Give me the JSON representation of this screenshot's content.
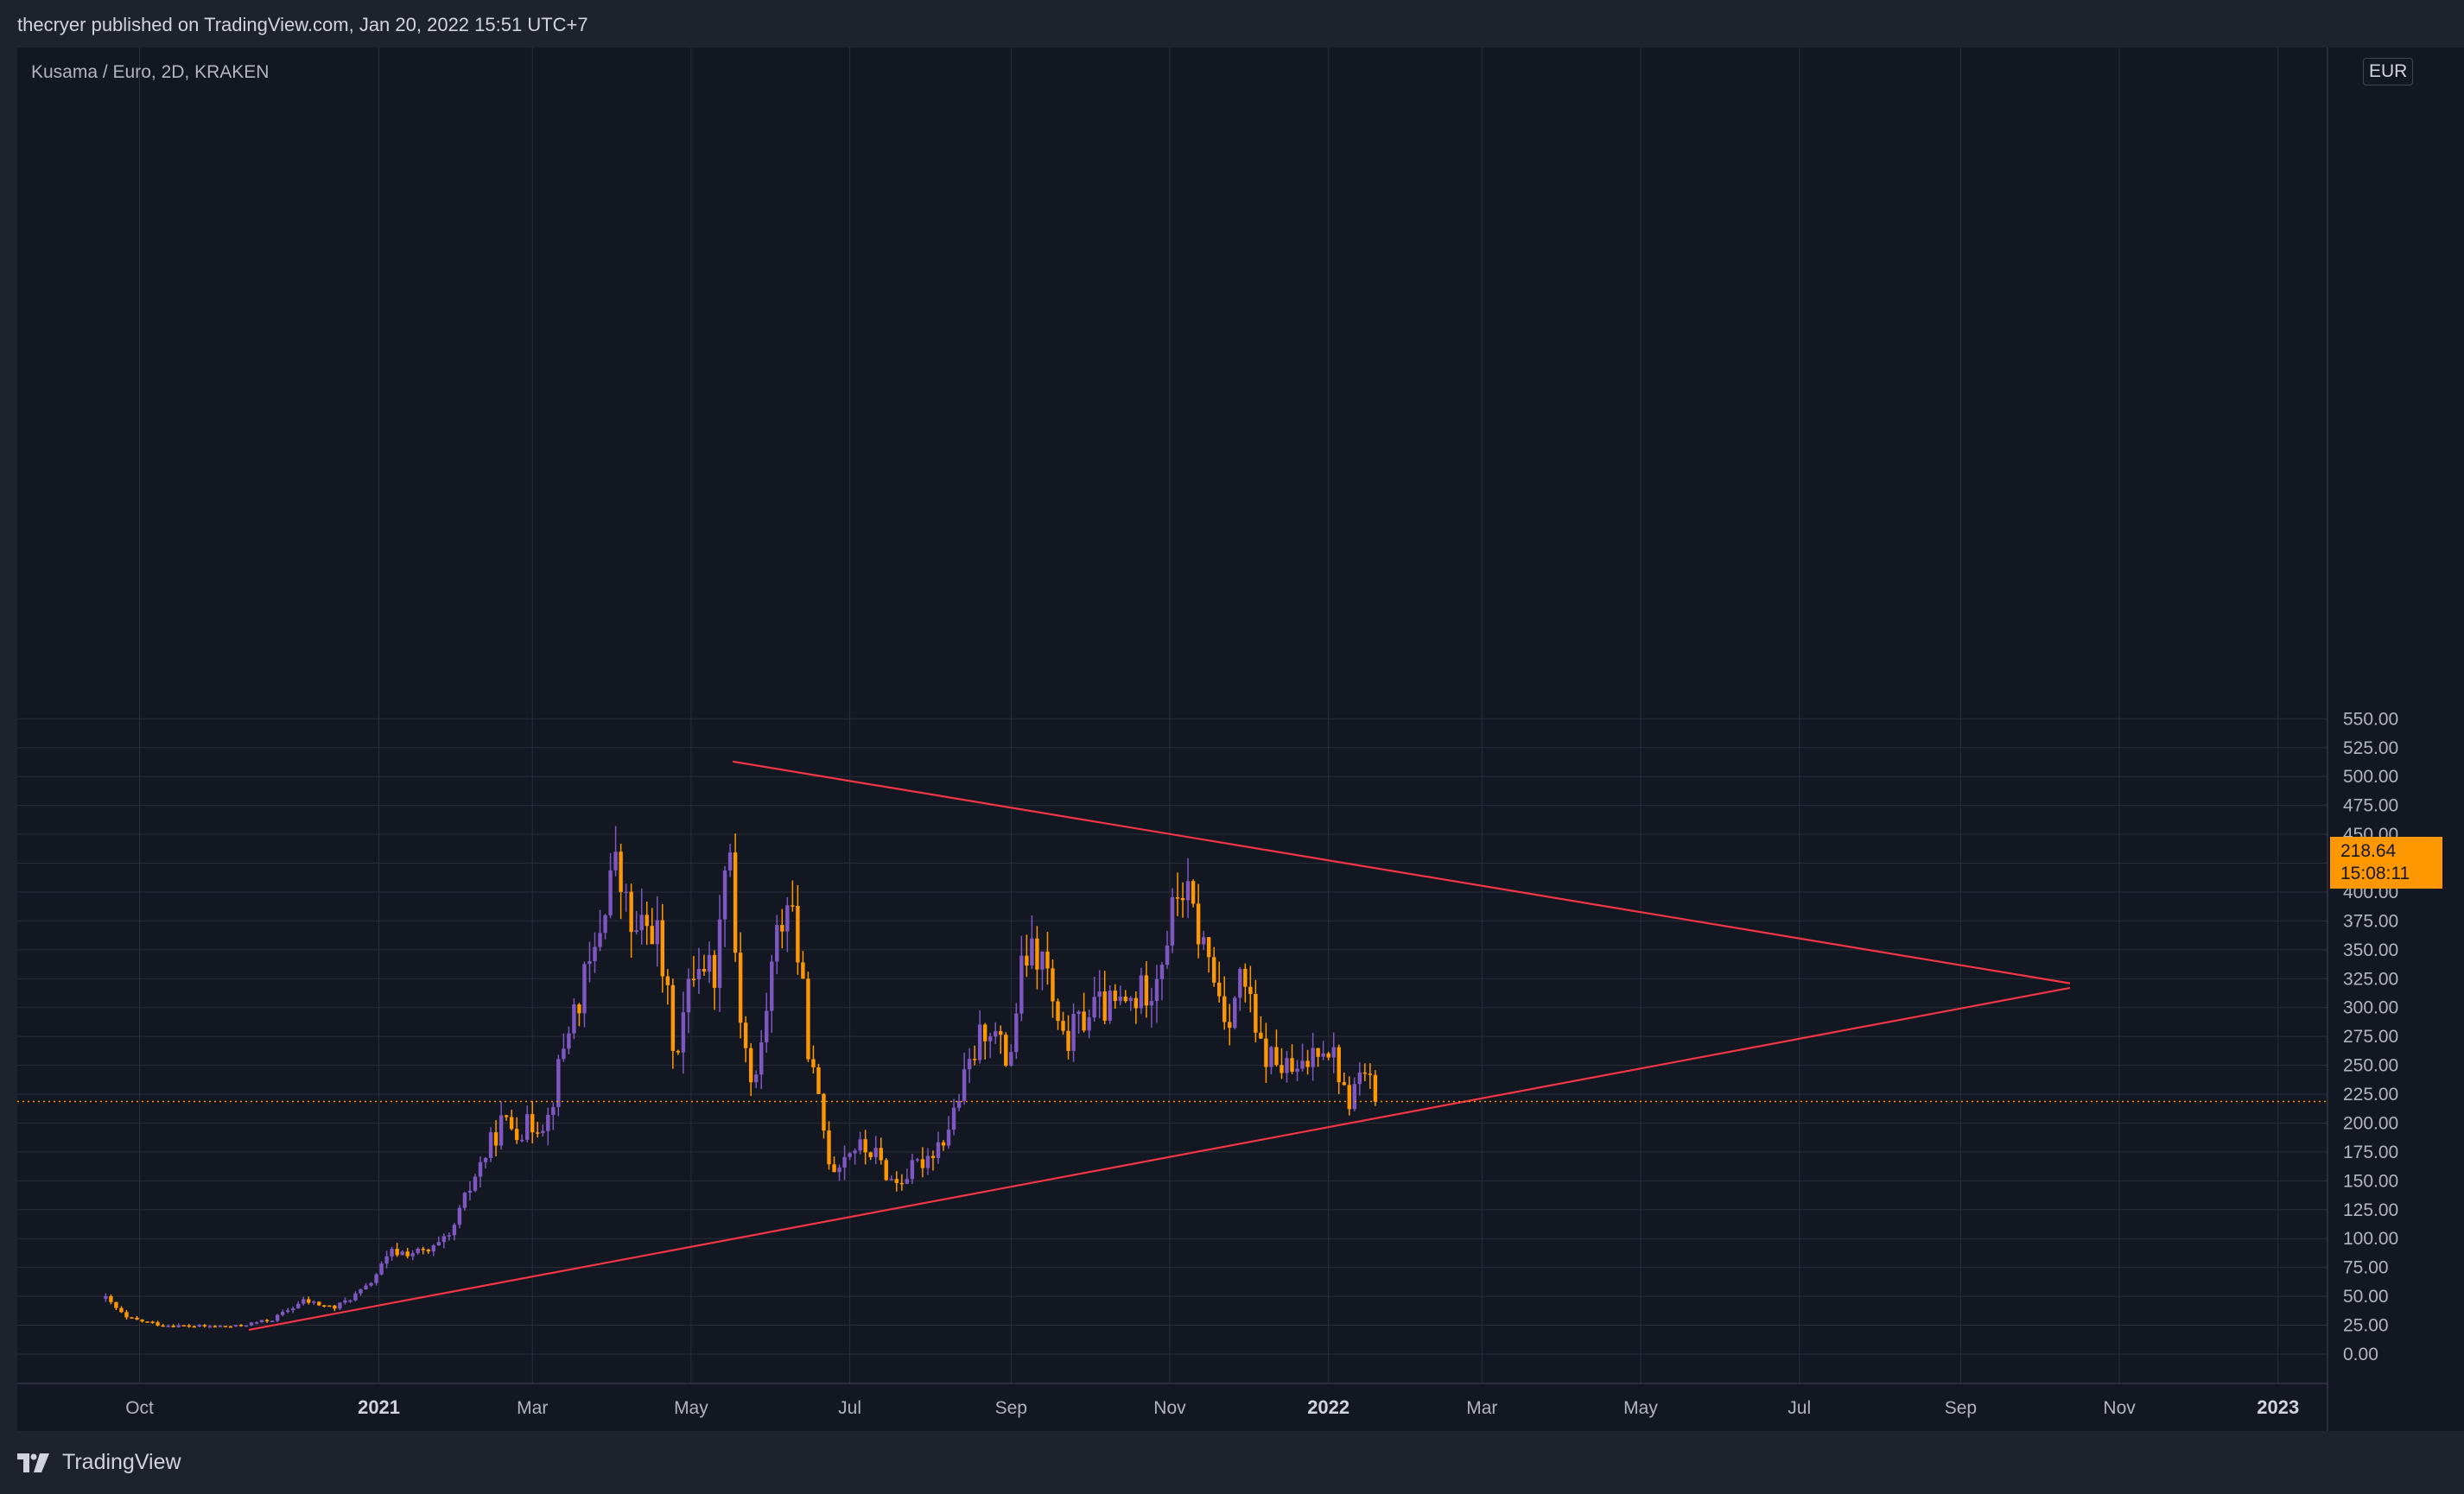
{
  "header": {
    "published_text": "thecryer published on TradingView.com, Jan 20, 2022 15:51 UTC+7"
  },
  "chart": {
    "symbol_label": "Kusama / Euro, 2D, KRAKEN",
    "currency": "EUR",
    "last_price": "218.64",
    "countdown": "15:08:11"
  },
  "footer": {
    "brand": "TradingView"
  },
  "colors": {
    "background": "#131722",
    "frame": "#1e222d",
    "grid": "#2a2e39",
    "up_candle": "#7e57c2",
    "down_candle": "#ff9800",
    "trendline": "#f23645",
    "price_line": "#ff9800"
  },
  "chart_data": {
    "type": "candlestick",
    "timeframe": "2D",
    "y_axis": {
      "range": [
        -15,
        560
      ],
      "ticks": [
        0,
        25,
        50,
        75,
        100,
        125,
        150,
        175,
        200,
        225,
        250,
        275,
        300,
        325,
        350,
        375,
        400,
        425,
        450,
        475,
        500,
        525,
        550
      ],
      "tick_labels": [
        "0.00",
        "25.00",
        "50.00",
        "75.00",
        "100.00",
        "125.00",
        "150.00",
        "175.00",
        "200.00",
        "225.00",
        "250.00",
        "275.00",
        "300.00",
        "325.00",
        "350.00",
        "375.00",
        "400.00",
        "425.00",
        "450.00",
        "475.00",
        "500.00",
        "525.00",
        "550.00"
      ]
    },
    "x_axis": {
      "range": [
        "2020-08-15",
        "2023-01-20"
      ],
      "ticks": [
        {
          "date": "2020-10-01",
          "label": "Oct",
          "bold": false
        },
        {
          "date": "2021-01-01",
          "label": "2021",
          "bold": true
        },
        {
          "date": "2021-03-01",
          "label": "Mar",
          "bold": false
        },
        {
          "date": "2021-05-01",
          "label": "May",
          "bold": false
        },
        {
          "date": "2021-07-01",
          "label": "Jul",
          "bold": false
        },
        {
          "date": "2021-09-01",
          "label": "Sep",
          "bold": false
        },
        {
          "date": "2021-11-01",
          "label": "Nov",
          "bold": false
        },
        {
          "date": "2022-01-01",
          "label": "2022",
          "bold": true
        },
        {
          "date": "2022-03-01",
          "label": "Mar",
          "bold": false
        },
        {
          "date": "2022-05-01",
          "label": "May",
          "bold": false
        },
        {
          "date": "2022-07-01",
          "label": "Jul",
          "bold": false
        },
        {
          "date": "2022-09-01",
          "label": "Sep",
          "bold": false
        },
        {
          "date": "2022-11-01",
          "label": "Nov",
          "bold": false
        },
        {
          "date": "2023-01-01",
          "label": "2023",
          "bold": true
        }
      ]
    },
    "anchors": [
      [
        "2020-09-18",
        48
      ],
      [
        "2020-09-26",
        31
      ],
      [
        "2020-10-10",
        25
      ],
      [
        "2020-10-24",
        24
      ],
      [
        "2020-11-07",
        24
      ],
      [
        "2020-11-21",
        30
      ],
      [
        "2020-12-03",
        46
      ],
      [
        "2020-12-15",
        40
      ],
      [
        "2020-12-27",
        57
      ],
      [
        "2021-01-06",
        88
      ],
      [
        "2021-01-20",
        88
      ],
      [
        "2021-01-28",
        100
      ],
      [
        "2021-02-07",
        155
      ],
      [
        "2021-02-17",
        200
      ],
      [
        "2021-02-25",
        195
      ],
      [
        "2021-03-07",
        205
      ],
      [
        "2021-03-15",
        285
      ],
      [
        "2021-03-25",
        345
      ],
      [
        "2021-04-01",
        430
      ],
      [
        "2021-04-09",
        360
      ],
      [
        "2021-04-17",
        375
      ],
      [
        "2021-04-25",
        260
      ],
      [
        "2021-05-03",
        345
      ],
      [
        "2021-05-11",
        330
      ],
      [
        "2021-05-15",
        480
      ],
      [
        "2021-05-19",
        310
      ],
      [
        "2021-05-25",
        220
      ],
      [
        "2021-06-02",
        350
      ],
      [
        "2021-06-08",
        405
      ],
      [
        "2021-06-16",
        250
      ],
      [
        "2021-06-24",
        160
      ],
      [
        "2021-07-02",
        180
      ],
      [
        "2021-07-10",
        175
      ],
      [
        "2021-07-18",
        147
      ],
      [
        "2021-07-28",
        165
      ],
      [
        "2021-08-07",
        190
      ],
      [
        "2021-08-17",
        255
      ],
      [
        "2021-08-23",
        290
      ],
      [
        "2021-08-31",
        250
      ],
      [
        "2021-09-06",
        345
      ],
      [
        "2021-09-14",
        340
      ],
      [
        "2021-09-20",
        265
      ],
      [
        "2021-10-02",
        300
      ],
      [
        "2021-10-10",
        300
      ],
      [
        "2021-10-18",
        305
      ],
      [
        "2021-10-26",
        325
      ],
      [
        "2021-11-01",
        370
      ],
      [
        "2021-11-05",
        410
      ],
      [
        "2021-11-13",
        360
      ],
      [
        "2021-11-23",
        290
      ],
      [
        "2021-11-29",
        330
      ],
      [
        "2021-12-05",
        265
      ],
      [
        "2021-12-13",
        250
      ],
      [
        "2021-12-21",
        240
      ],
      [
        "2021-12-29",
        275
      ],
      [
        "2022-01-04",
        255
      ],
      [
        "2022-01-08",
        215
      ],
      [
        "2022-01-14",
        245
      ],
      [
        "2022-01-20",
        218.64
      ]
    ],
    "trendlines": [
      {
        "from": {
          "date": "2021-05-17",
          "price": 513
        },
        "to": {
          "date": "2022-10-13",
          "price": 321
        }
      },
      {
        "from": {
          "date": "2020-11-12",
          "price": 21
        },
        "to": {
          "date": "2022-10-13",
          "price": 317
        }
      }
    ],
    "last_price": 218.64
  }
}
